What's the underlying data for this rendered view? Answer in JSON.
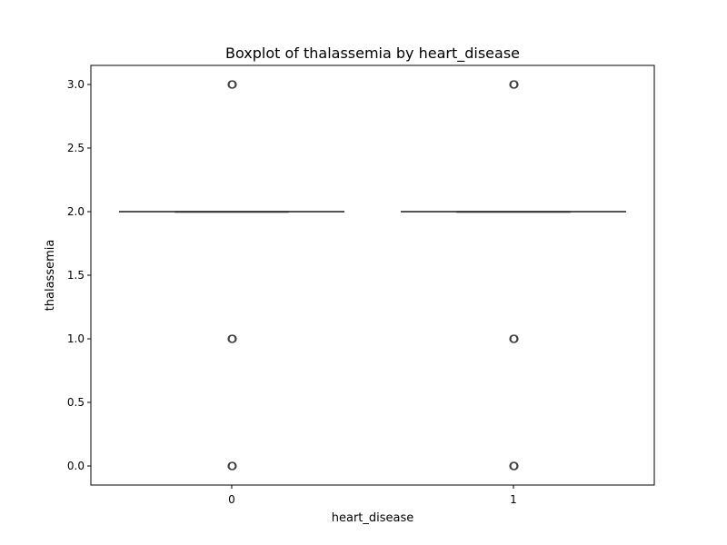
{
  "chart_data": {
    "type": "boxplot",
    "title": "Boxplot of thalassemia by heart_disease",
    "xlabel": "heart_disease",
    "ylabel": "thalassemia",
    "categories": [
      "0",
      "1"
    ],
    "ylim": [
      -0.15,
      3.15
    ],
    "yticks": [
      0.0,
      0.5,
      1.0,
      1.5,
      2.0,
      2.5,
      3.0
    ],
    "ytick_labels": [
      "0.0",
      "0.5",
      "1.0",
      "1.5",
      "2.0",
      "2.5",
      "3.0"
    ],
    "grid": false,
    "boxes": [
      {
        "category": "0",
        "min": 2.0,
        "q1": 2.0,
        "median": 2.0,
        "q3": 2.0,
        "max": 2.0,
        "outliers": [
          0.0,
          1.0,
          3.0
        ]
      },
      {
        "category": "1",
        "min": 2.0,
        "q1": 2.0,
        "median": 2.0,
        "q3": 2.0,
        "max": 2.0,
        "outliers": [
          0.0,
          1.0,
          3.0
        ]
      }
    ]
  }
}
